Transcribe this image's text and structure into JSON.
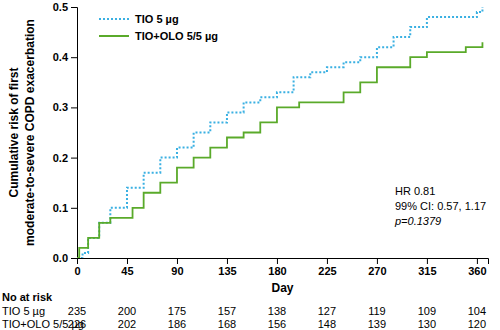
{
  "chart_data": {
    "type": "line",
    "x_label": "Day",
    "y_label": [
      "Cumulative risk of first",
      "moderate-to-severe COPD exacerbation"
    ],
    "xlim": [
      0,
      370
    ],
    "xticks": [
      0,
      45,
      90,
      135,
      180,
      225,
      270,
      315,
      360
    ],
    "ylim": [
      0,
      0.5
    ],
    "yticks": [
      {
        "value": 0,
        "label": "0.0"
      },
      {
        "value": 0.1,
        "label": "0.1"
      },
      {
        "value": 0.2,
        "label": "0.2"
      },
      {
        "value": 0.3,
        "label": "0.3"
      },
      {
        "value": 0.4,
        "label": "0.4"
      },
      {
        "value": 0.5,
        "label": "0.5"
      }
    ],
    "grid": false,
    "legend": "top-left",
    "series": [
      {
        "name": "TIO 5 µg",
        "color": "#3ab0e2",
        "line_style": "dotted",
        "x": [
          0,
          5,
          10,
          20,
          30,
          45,
          60,
          75,
          90,
          105,
          120,
          135,
          150,
          165,
          180,
          195,
          210,
          225,
          240,
          255,
          270,
          285,
          300,
          315,
          345,
          360,
          365
        ],
        "values": [
          0,
          0.01,
          0.04,
          0.07,
          0.1,
          0.14,
          0.17,
          0.2,
          0.22,
          0.25,
          0.27,
          0.29,
          0.31,
          0.32,
          0.33,
          0.36,
          0.37,
          0.38,
          0.39,
          0.4,
          0.42,
          0.44,
          0.46,
          0.48,
          0.48,
          0.49,
          0.5
        ]
      },
      {
        "name": "TIO+OLO 5/5 µg",
        "color": "#5aaa2a",
        "line_style": "solid",
        "x": [
          0,
          2,
          10,
          20,
          30,
          45,
          50,
          60,
          75,
          90,
          105,
          120,
          135,
          150,
          165,
          180,
          200,
          225,
          240,
          255,
          270,
          290,
          300,
          315,
          350,
          365
        ],
        "values": [
          0,
          0.02,
          0.04,
          0.07,
          0.08,
          0.08,
          0.1,
          0.13,
          0.15,
          0.18,
          0.2,
          0.22,
          0.24,
          0.25,
          0.27,
          0.3,
          0.31,
          0.31,
          0.33,
          0.35,
          0.38,
          0.38,
          0.4,
          0.41,
          0.42,
          0.43
        ]
      }
    ],
    "annotations": [
      "HR 0.81",
      "99% CI: 0.57, 1.17",
      "p=0.1379"
    ],
    "at_risk": {
      "title": "No at risk",
      "rows": [
        {
          "name": "TIO 5 µg",
          "values": [
            235,
            200,
            175,
            157,
            138,
            127,
            119,
            109,
            104
          ]
        },
        {
          "name": "TIO+OLO 5/5 µg",
          "values": [
            226,
            202,
            186,
            168,
            156,
            148,
            139,
            130,
            120
          ]
        }
      ]
    }
  }
}
